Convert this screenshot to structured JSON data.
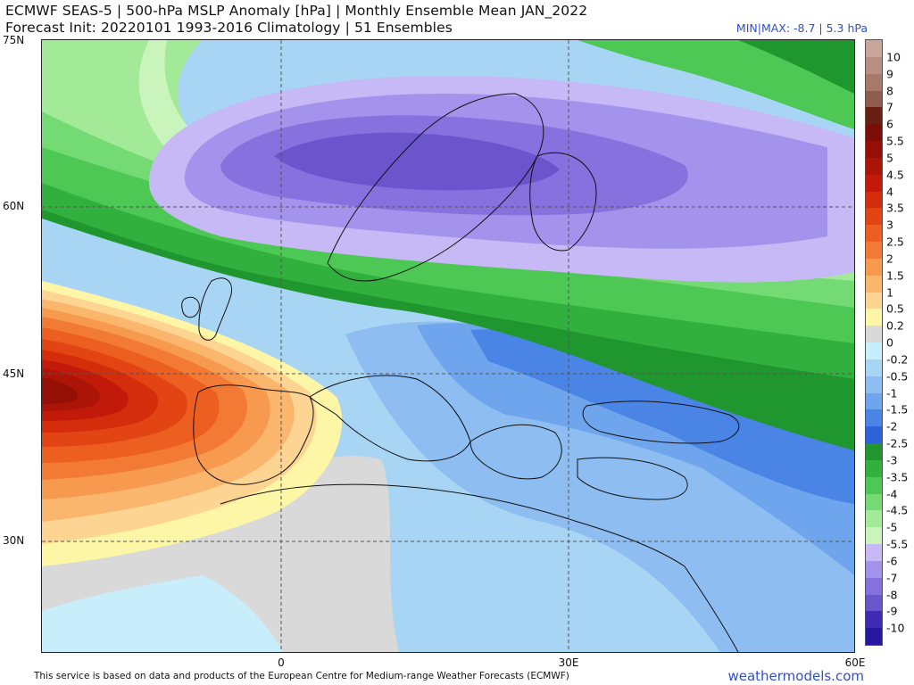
{
  "header": {
    "title_line1": "ECMWF SEAS-5 | 500-hPa MSLP Anomaly [hPa] | Monthly Ensemble Mean JAN_2022",
    "title_line2": "Forecast Init: 20220101     1993-2016 Climatology | 51 Ensembles",
    "minmax": "MIN|MAX: -8.7 | 5.3 hPa"
  },
  "map": {
    "lat_labels": [
      "75N",
      "60N",
      "45N",
      "30N"
    ],
    "lon_labels": [
      "0",
      "30E",
      "60E"
    ],
    "lat_values": [
      75,
      60,
      45,
      30
    ],
    "lon_values": [
      0,
      30,
      60
    ],
    "extent": {
      "lon_min": -25,
      "lon_max": 60,
      "lat_min": 20,
      "lat_max": 75
    },
    "anomaly_centers": [
      {
        "kind": "negative",
        "lon": 8,
        "lat": 66,
        "value": -7.5
      },
      {
        "kind": "positive",
        "lon": -25,
        "lat": 44,
        "value": 5.3
      }
    ]
  },
  "colorbar": {
    "labels": [
      "10",
      "9",
      "8",
      "7",
      "6",
      "5.5",
      "5",
      "4.5",
      "4",
      "3.5",
      "3",
      "2.5",
      "2",
      "1.5",
      "1",
      "0.5",
      "0.2",
      "0",
      "-0.2",
      "-0.5",
      "-1",
      "-1.5",
      "-2",
      "-2.5",
      "-3",
      "-3.5",
      "-4",
      "-4.5",
      "-5",
      "-5.5",
      "-6",
      "-7",
      "-8",
      "-9",
      "-10"
    ],
    "colors": [
      "#c9a59a",
      "#b88f82",
      "#a6796b",
      "#8e5d4d",
      "#6b1f12",
      "#7d0e07",
      "#960f07",
      "#ad1408",
      "#c21a0a",
      "#d42d0c",
      "#e24413",
      "#ec5f20",
      "#f37a35",
      "#f7994f",
      "#fbb66e",
      "#fdd492",
      "#fdf6a6",
      "#d9d9d9",
      "#c9eefb",
      "#a9d5f5",
      "#8ebdf1",
      "#6fa5ec",
      "#4a84e4",
      "#2d63d8",
      "#20962e",
      "#31b03e",
      "#4dc855",
      "#74da73",
      "#a2ea97",
      "#c9f5bc",
      "#c7b9f5",
      "#a493ec",
      "#8672de",
      "#6a55cd",
      "#3f2ab6",
      "#2616a0"
    ]
  },
  "footer": {
    "note": "This service is based on data and products of the European Centre for Medium-range Weather Forecasts (ECMWF)",
    "brand": "weathermodels.com"
  }
}
